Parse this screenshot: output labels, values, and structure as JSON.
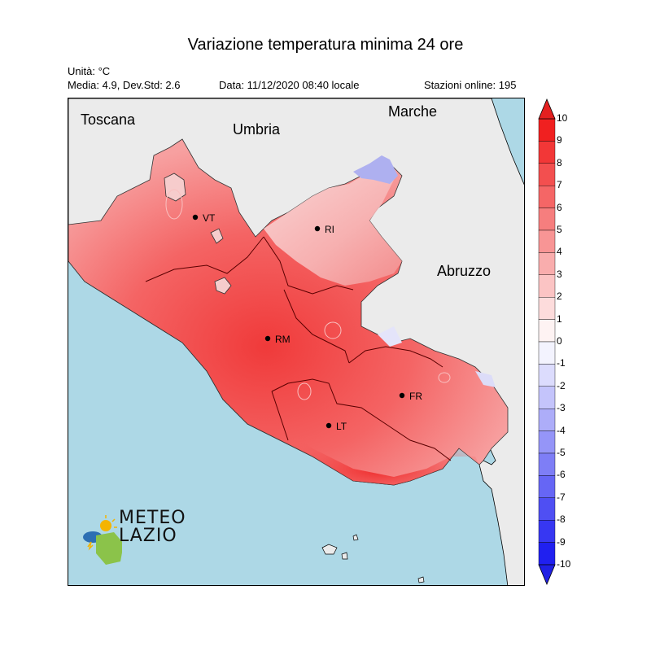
{
  "title": "Variazione temperatura minima 24 ore",
  "units": "Unità: °C",
  "stats": "Media: 4.9, Dev.Std: 2.6",
  "date": "Data: 11/12/2020 08:40 locale",
  "stations": "Stazioni online: 195",
  "regions": {
    "toscana": "Toscana",
    "umbria": "Umbria",
    "marche": "Marche",
    "abruzzo": "Abruzzo"
  },
  "cities": {
    "vt": "VT",
    "ri": "RI",
    "rm": "RM",
    "fr": "FR",
    "lt": "LT"
  },
  "legend": {
    "ticks": [
      "10",
      "9",
      "8",
      "7",
      "6",
      "5",
      "4",
      "3",
      "2",
      "1",
      "0",
      "-1",
      "-2",
      "-3",
      "-4",
      "-5",
      "-6",
      "-7",
      "-8",
      "-9",
      "-10"
    ],
    "min": -10,
    "max": 10
  },
  "logo": {
    "line1": "METEO",
    "line2": "LAZIO"
  },
  "colors": {
    "sea": "#add8e6",
    "land": "#ebebeb",
    "warm_max": "#f02020",
    "cold_max": "#2020f0",
    "zero": "#ffffff"
  }
}
